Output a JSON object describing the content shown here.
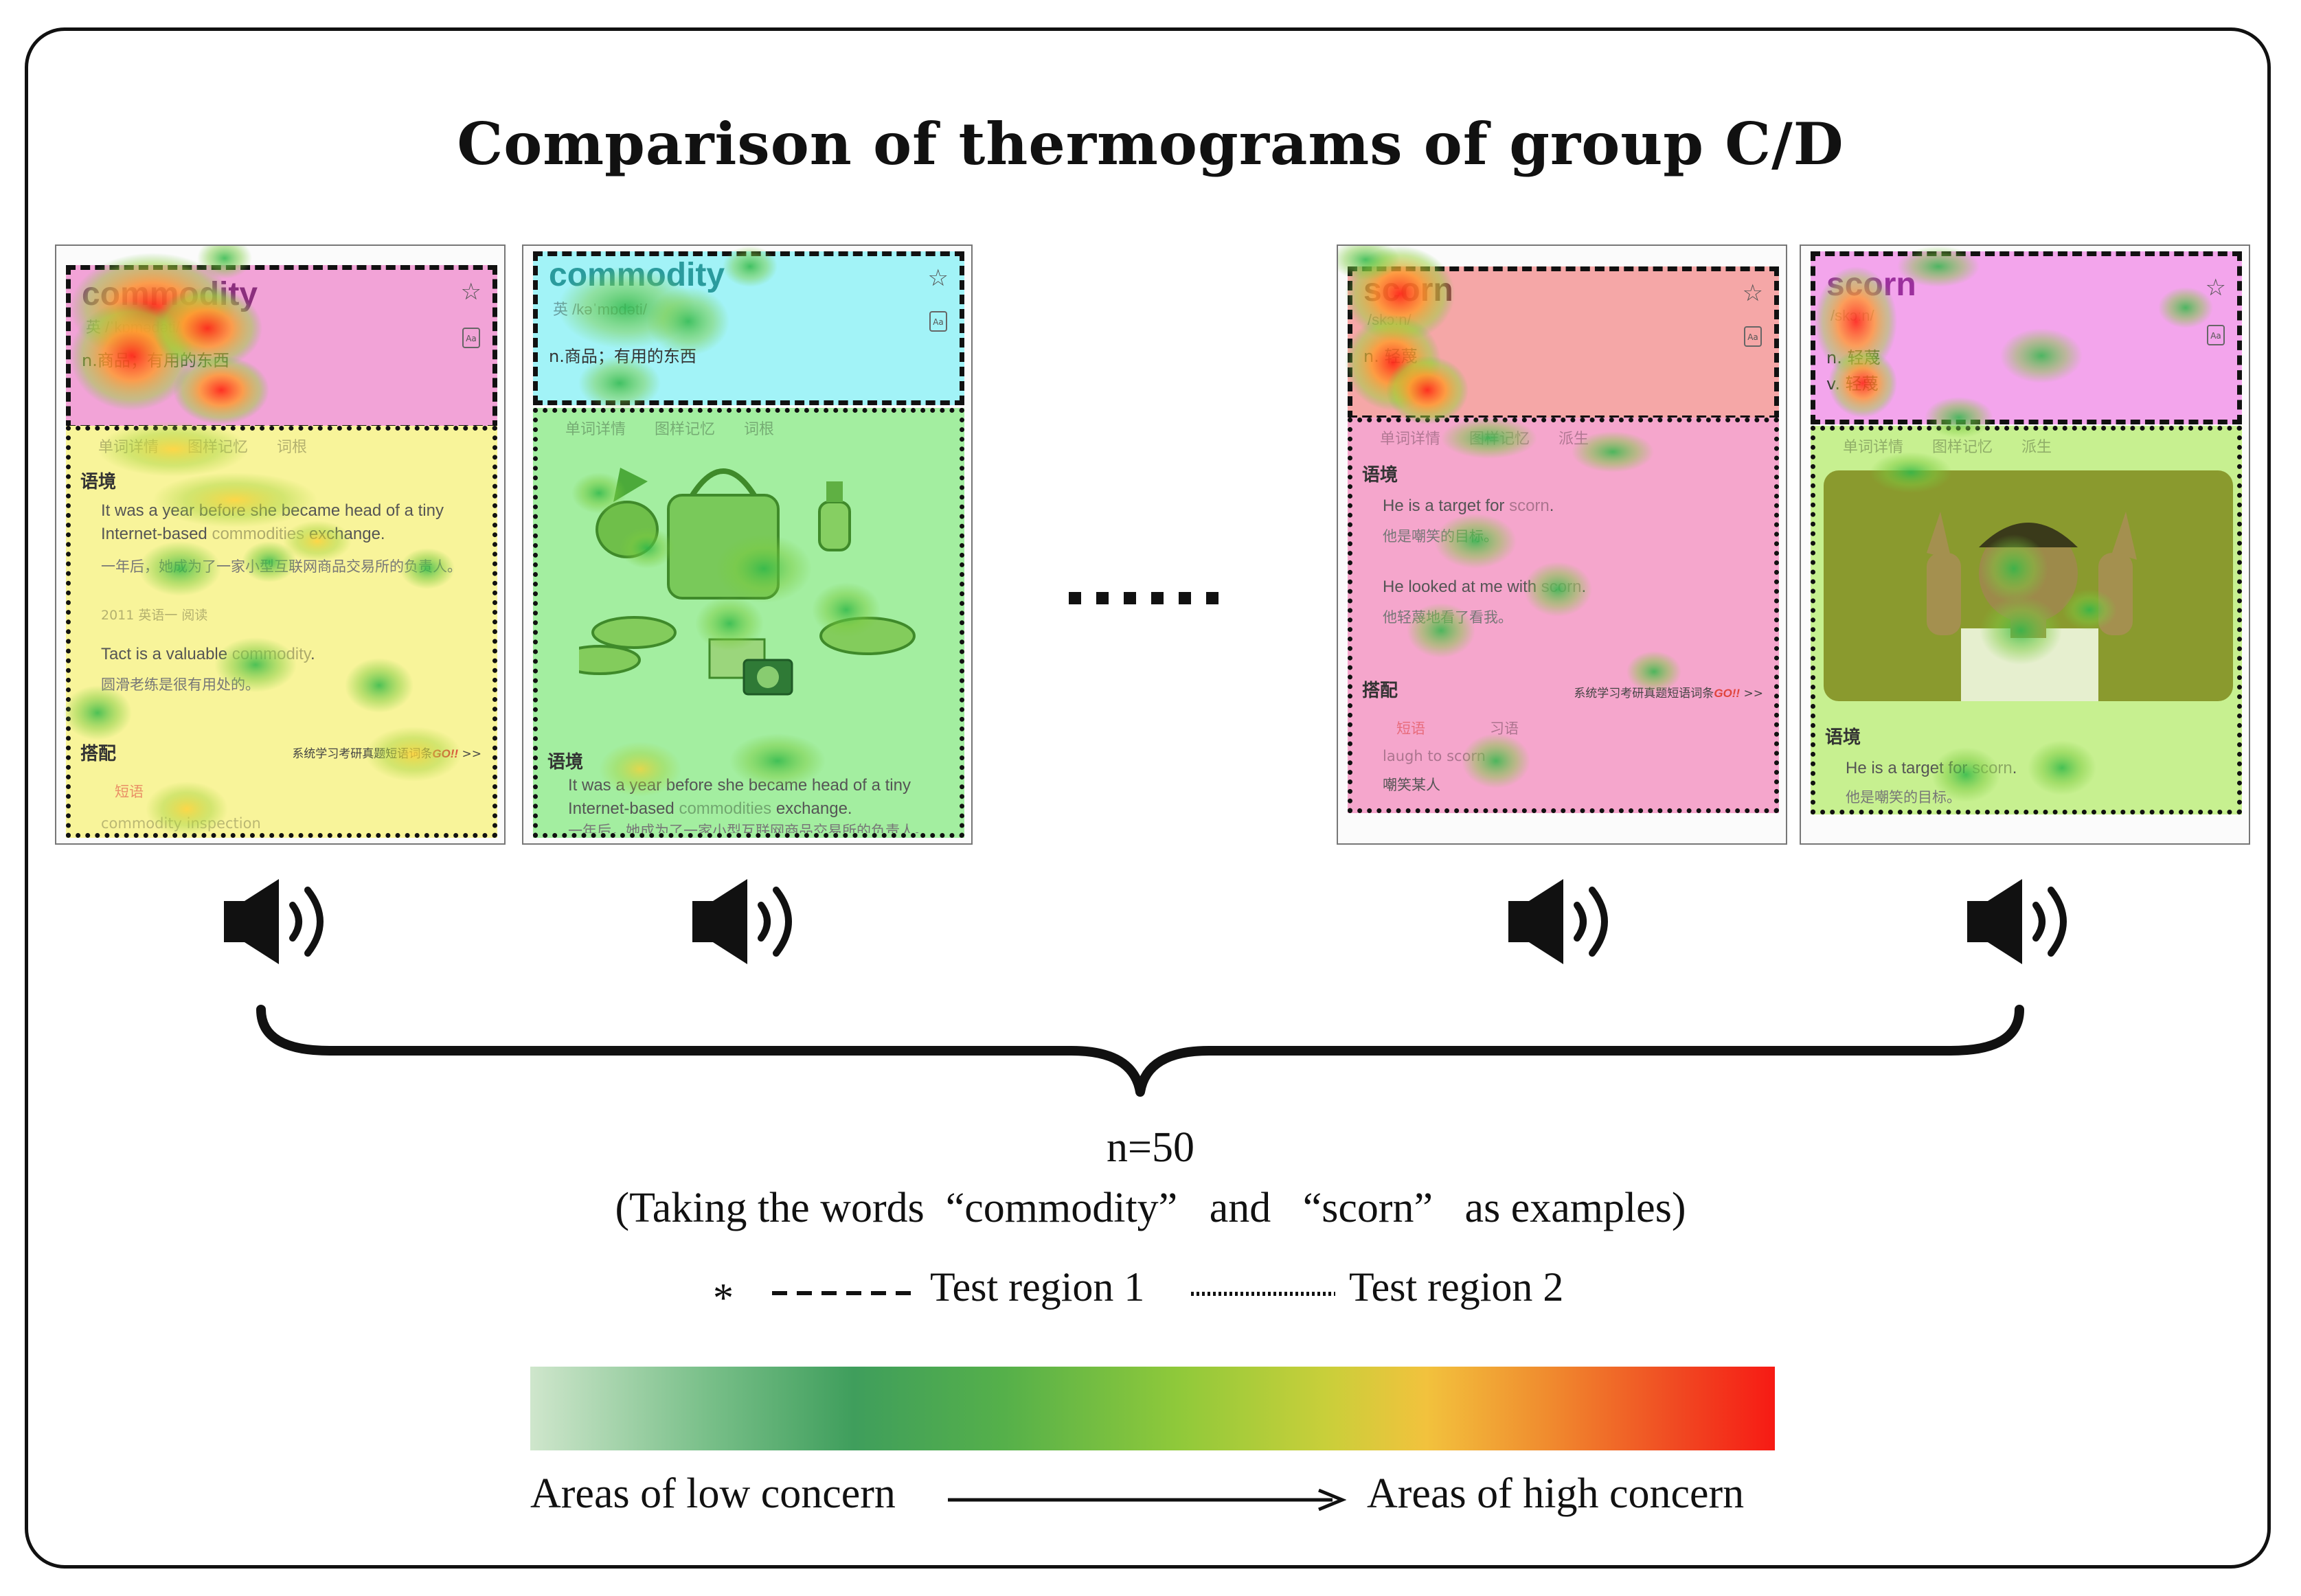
{
  "title": "Comparison of thermograms of group C/D",
  "icons": [
    "speaker-icon",
    "star-icon",
    "aa-icon",
    "arrow-right-icon",
    "brace-icon"
  ],
  "colors": {
    "region_pink": "#f2a3d7",
    "region_cyan": "#a2f3f7",
    "region_yellow": "#f8f49a",
    "region_green": "#a3eea0",
    "region_salmon": "#f5a7a7",
    "region_rose": "#f5a6cc",
    "region_magenta": "#f3a5ec",
    "region_lime": "#c7f090"
  },
  "panels": [
    {
      "word": "commodity",
      "phonetic": "英 /ˈkɒmədəti/",
      "meaning": "n.商品；有用的东西",
      "tabs": [
        "单词详情",
        "图样记忆",
        "词根"
      ],
      "context_heading": "语境",
      "examples": [
        {
          "en_pre": "It was a year before she became head of a tiny Internet-based ",
          "en_hl": "commodities",
          "en_post": " exchange.",
          "zh": "一年后，她成为了一家小型互联网商品交易所的负责人。"
        },
        {
          "en_pre": "Tact is a valuable ",
          "en_hl": "commodity",
          "en_post": ".",
          "zh": "圆滑老练是很有用处的。"
        }
      ],
      "source": "2011 英语一 阅读",
      "collocation_heading": "搭配",
      "promo_text": "系统学习考研真题短语词条",
      "promo_go": "GO!!",
      "promo_arrow": ">>",
      "chips": [
        "短语"
      ],
      "phrase": "commodity inspection"
    },
    {
      "word": "commodity",
      "phonetic": "英 /kəˈmɒdəti/",
      "meaning": "n.商品；有用的东西",
      "tabs": [
        "单词详情",
        "图样记忆",
        "词根"
      ],
      "context_heading": "语境",
      "example": {
        "en_pre": "It was a year before she became head of a tiny Internet-based ",
        "en_hl": "commodities",
        "en_post": " exchange.",
        "zh": "一年后，她成为了一家小型互联网商品交易所的负责人。"
      }
    },
    {
      "word": "scorn",
      "phonetic": "/skɔːn/",
      "meaning_pos": "n.",
      "meaning": "轻蔑",
      "tabs": [
        "单词详情",
        "图样记忆",
        "派生"
      ],
      "context_heading": "语境",
      "examples": [
        {
          "en_pre": "He is a target for ",
          "en_hl": "scorn",
          "en_post": ".",
          "zh": "他是嘲笑的目标。"
        },
        {
          "en_pre": "He looked at me with ",
          "en_hl": "scorn",
          "en_post": ".",
          "zh": "他轻蔑地看了看我。"
        }
      ],
      "collocation_heading": "搭配",
      "promo_text": "系统学习考研真题短语词条",
      "promo_go": "GO!!",
      "promo_arrow": ">>",
      "chips": [
        "短语",
        "习语"
      ],
      "phrase": "laugh to scorn",
      "phrase_zh": "嘲笑某人"
    },
    {
      "word": "scorn",
      "phonetic": "/skɔːn/",
      "meaning_pos": "n.",
      "meaning": "轻蔑",
      "meaning2_pos": "v.",
      "meaning2": "轻蔑",
      "tabs": [
        "单词详情",
        "图样记忆",
        "派生"
      ],
      "context_heading": "语境",
      "example": {
        "en_pre": "He is a target for ",
        "en_hl": "scorn",
        "en_post": ".",
        "zh": "他是嘲笑的目标。"
      }
    }
  ],
  "ellipsis": "......",
  "sample_size": "n=50",
  "examples_note": "(Taking the words  “commodity”   and   “scorn”   as examples)",
  "legend": {
    "asterisk": "*",
    "region1": "Test region 1",
    "region2": "Test region 2"
  },
  "scale": {
    "low_label": "Areas of low concern",
    "high_label": "Areas of high concern"
  }
}
